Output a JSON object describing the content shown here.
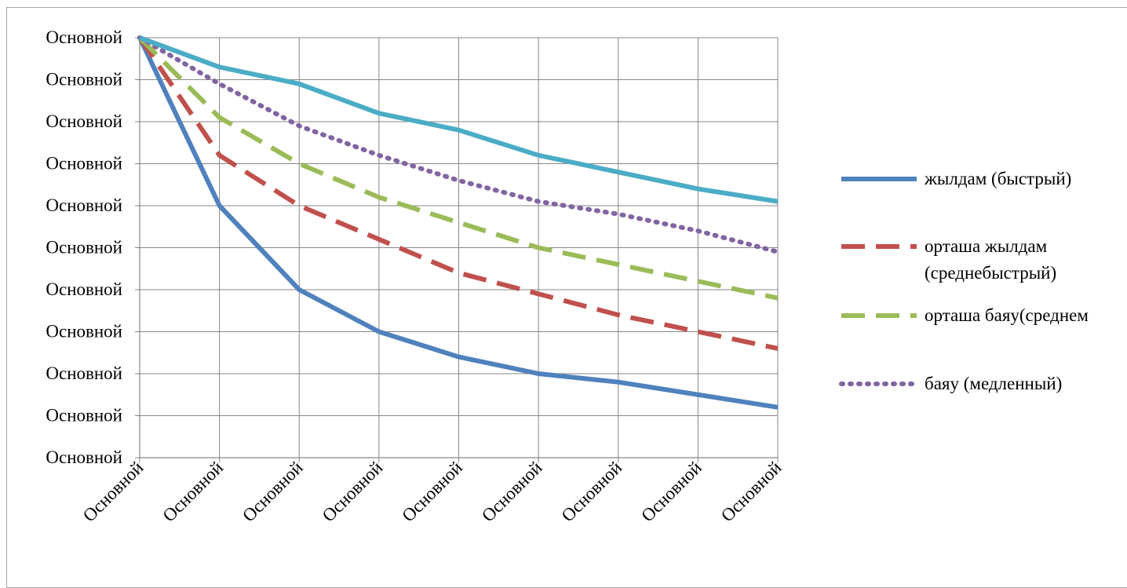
{
  "chart_data": {
    "type": "line",
    "title": "",
    "xlabel": "",
    "ylabel": "",
    "y_tick_labels": [
      "Основной",
      "Основной",
      "Основной",
      "Основной",
      "Основной",
      "Основной",
      "Основной",
      "Основной",
      "Основной",
      "Основной",
      "Основной"
    ],
    "categories": [
      "Основной",
      "Основной",
      "Основной",
      "Основной",
      "Основной",
      "Основной",
      "Основной",
      "Основной",
      "Основной"
    ],
    "ylim": [
      0,
      10
    ],
    "grid": true,
    "legend_position": "right",
    "series": [
      {
        "name": "жылдам (быстрый)",
        "color": "#4f81bd",
        "dash": "solid",
        "values": [
          10,
          6,
          4,
          3,
          2.4,
          2,
          1.8,
          1.5,
          1.2
        ]
      },
      {
        "name": "орташа жылдам (среднебыстрый)",
        "color": "#c0504d",
        "dash": "dashed",
        "values": [
          10,
          7.2,
          6,
          5.2,
          4.4,
          3.9,
          3.4,
          3,
          2.6
        ]
      },
      {
        "name": "орташа баяу(среднем",
        "color": "#9bbb59",
        "dash": "dashed",
        "values": [
          10,
          8.1,
          7,
          6.2,
          5.6,
          5,
          4.6,
          4.2,
          3.8
        ]
      },
      {
        "name": "баяу (медленный)",
        "color": "#8064a2",
        "dash": "dotted",
        "values": [
          10,
          8.9,
          7.9,
          7.2,
          6.6,
          6.1,
          5.8,
          5.4,
          4.9
        ]
      },
      {
        "name": "",
        "color": "#4bacc6",
        "dash": "solid",
        "values": [
          10,
          9.3,
          8.9,
          8.2,
          7.8,
          7.2,
          6.8,
          6.4,
          6.1
        ]
      }
    ]
  }
}
